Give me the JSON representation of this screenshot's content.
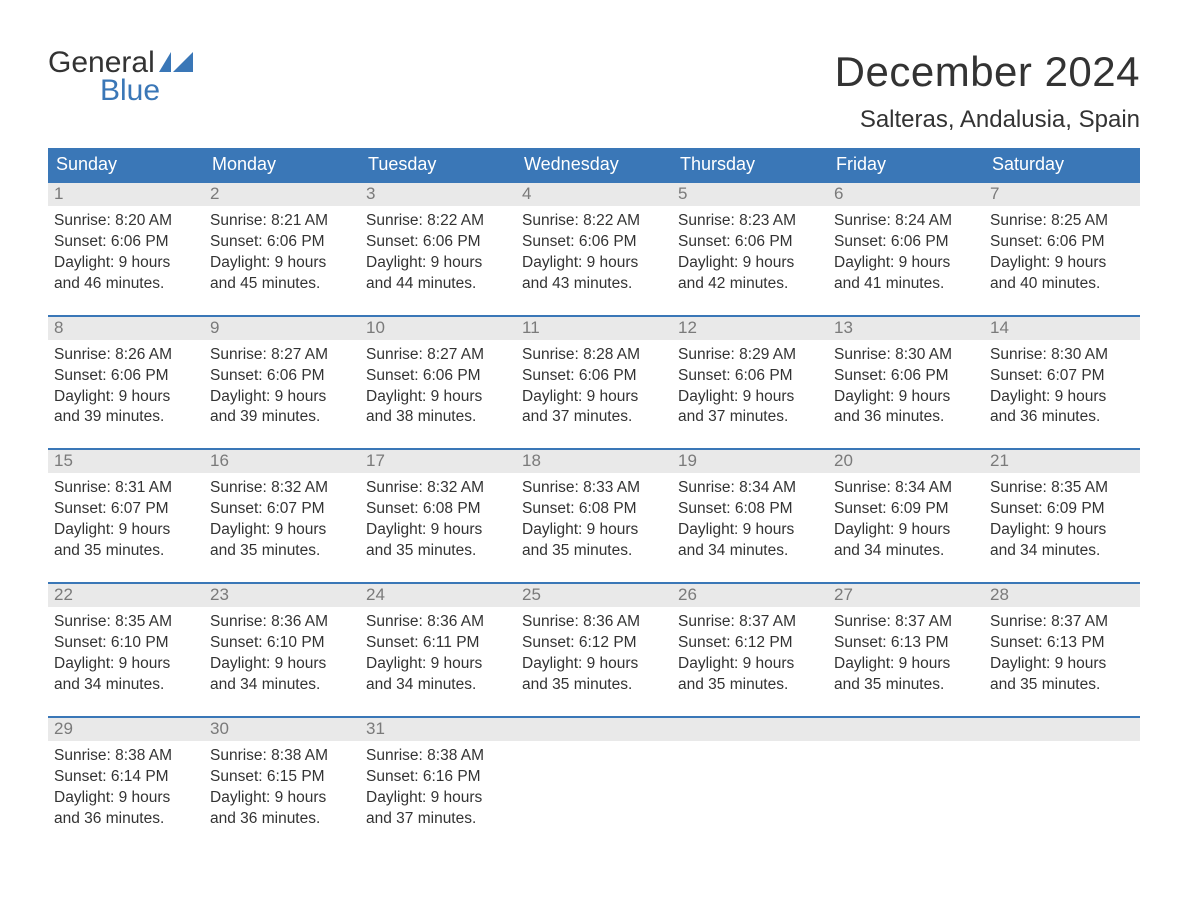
{
  "logo": {
    "line1": "General",
    "line2": "Blue",
    "flag_color": "#3a77b7"
  },
  "title": "December 2024",
  "location": "Salteras, Andalusia, Spain",
  "colors": {
    "header_bg": "#3a77b7",
    "header_text": "#ffffff",
    "daynum_bg": "#e9e9e9",
    "daynum_text": "#7a7a7a",
    "body_text": "#333333",
    "week_border": "#3a77b7",
    "page_bg": "#ffffff"
  },
  "day_names": [
    "Sunday",
    "Monday",
    "Tuesday",
    "Wednesday",
    "Thursday",
    "Friday",
    "Saturday"
  ],
  "weeks": [
    [
      {
        "n": "1",
        "sunrise": "Sunrise: 8:20 AM",
        "sunset": "Sunset: 6:06 PM",
        "day1": "Daylight: 9 hours",
        "day2": "and 46 minutes."
      },
      {
        "n": "2",
        "sunrise": "Sunrise: 8:21 AM",
        "sunset": "Sunset: 6:06 PM",
        "day1": "Daylight: 9 hours",
        "day2": "and 45 minutes."
      },
      {
        "n": "3",
        "sunrise": "Sunrise: 8:22 AM",
        "sunset": "Sunset: 6:06 PM",
        "day1": "Daylight: 9 hours",
        "day2": "and 44 minutes."
      },
      {
        "n": "4",
        "sunrise": "Sunrise: 8:22 AM",
        "sunset": "Sunset: 6:06 PM",
        "day1": "Daylight: 9 hours",
        "day2": "and 43 minutes."
      },
      {
        "n": "5",
        "sunrise": "Sunrise: 8:23 AM",
        "sunset": "Sunset: 6:06 PM",
        "day1": "Daylight: 9 hours",
        "day2": "and 42 minutes."
      },
      {
        "n": "6",
        "sunrise": "Sunrise: 8:24 AM",
        "sunset": "Sunset: 6:06 PM",
        "day1": "Daylight: 9 hours",
        "day2": "and 41 minutes."
      },
      {
        "n": "7",
        "sunrise": "Sunrise: 8:25 AM",
        "sunset": "Sunset: 6:06 PM",
        "day1": "Daylight: 9 hours",
        "day2": "and 40 minutes."
      }
    ],
    [
      {
        "n": "8",
        "sunrise": "Sunrise: 8:26 AM",
        "sunset": "Sunset: 6:06 PM",
        "day1": "Daylight: 9 hours",
        "day2": "and 39 minutes."
      },
      {
        "n": "9",
        "sunrise": "Sunrise: 8:27 AM",
        "sunset": "Sunset: 6:06 PM",
        "day1": "Daylight: 9 hours",
        "day2": "and 39 minutes."
      },
      {
        "n": "10",
        "sunrise": "Sunrise: 8:27 AM",
        "sunset": "Sunset: 6:06 PM",
        "day1": "Daylight: 9 hours",
        "day2": "and 38 minutes."
      },
      {
        "n": "11",
        "sunrise": "Sunrise: 8:28 AM",
        "sunset": "Sunset: 6:06 PM",
        "day1": "Daylight: 9 hours",
        "day2": "and 37 minutes."
      },
      {
        "n": "12",
        "sunrise": "Sunrise: 8:29 AM",
        "sunset": "Sunset: 6:06 PM",
        "day1": "Daylight: 9 hours",
        "day2": "and 37 minutes."
      },
      {
        "n": "13",
        "sunrise": "Sunrise: 8:30 AM",
        "sunset": "Sunset: 6:06 PM",
        "day1": "Daylight: 9 hours",
        "day2": "and 36 minutes."
      },
      {
        "n": "14",
        "sunrise": "Sunrise: 8:30 AM",
        "sunset": "Sunset: 6:07 PM",
        "day1": "Daylight: 9 hours",
        "day2": "and 36 minutes."
      }
    ],
    [
      {
        "n": "15",
        "sunrise": "Sunrise: 8:31 AM",
        "sunset": "Sunset: 6:07 PM",
        "day1": "Daylight: 9 hours",
        "day2": "and 35 minutes."
      },
      {
        "n": "16",
        "sunrise": "Sunrise: 8:32 AM",
        "sunset": "Sunset: 6:07 PM",
        "day1": "Daylight: 9 hours",
        "day2": "and 35 minutes."
      },
      {
        "n": "17",
        "sunrise": "Sunrise: 8:32 AM",
        "sunset": "Sunset: 6:08 PM",
        "day1": "Daylight: 9 hours",
        "day2": "and 35 minutes."
      },
      {
        "n": "18",
        "sunrise": "Sunrise: 8:33 AM",
        "sunset": "Sunset: 6:08 PM",
        "day1": "Daylight: 9 hours",
        "day2": "and 35 minutes."
      },
      {
        "n": "19",
        "sunrise": "Sunrise: 8:34 AM",
        "sunset": "Sunset: 6:08 PM",
        "day1": "Daylight: 9 hours",
        "day2": "and 34 minutes."
      },
      {
        "n": "20",
        "sunrise": "Sunrise: 8:34 AM",
        "sunset": "Sunset: 6:09 PM",
        "day1": "Daylight: 9 hours",
        "day2": "and 34 minutes."
      },
      {
        "n": "21",
        "sunrise": "Sunrise: 8:35 AM",
        "sunset": "Sunset: 6:09 PM",
        "day1": "Daylight: 9 hours",
        "day2": "and 34 minutes."
      }
    ],
    [
      {
        "n": "22",
        "sunrise": "Sunrise: 8:35 AM",
        "sunset": "Sunset: 6:10 PM",
        "day1": "Daylight: 9 hours",
        "day2": "and 34 minutes."
      },
      {
        "n": "23",
        "sunrise": "Sunrise: 8:36 AM",
        "sunset": "Sunset: 6:10 PM",
        "day1": "Daylight: 9 hours",
        "day2": "and 34 minutes."
      },
      {
        "n": "24",
        "sunrise": "Sunrise: 8:36 AM",
        "sunset": "Sunset: 6:11 PM",
        "day1": "Daylight: 9 hours",
        "day2": "and 34 minutes."
      },
      {
        "n": "25",
        "sunrise": "Sunrise: 8:36 AM",
        "sunset": "Sunset: 6:12 PM",
        "day1": "Daylight: 9 hours",
        "day2": "and 35 minutes."
      },
      {
        "n": "26",
        "sunrise": "Sunrise: 8:37 AM",
        "sunset": "Sunset: 6:12 PM",
        "day1": "Daylight: 9 hours",
        "day2": "and 35 minutes."
      },
      {
        "n": "27",
        "sunrise": "Sunrise: 8:37 AM",
        "sunset": "Sunset: 6:13 PM",
        "day1": "Daylight: 9 hours",
        "day2": "and 35 minutes."
      },
      {
        "n": "28",
        "sunrise": "Sunrise: 8:37 AM",
        "sunset": "Sunset: 6:13 PM",
        "day1": "Daylight: 9 hours",
        "day2": "and 35 minutes."
      }
    ],
    [
      {
        "n": "29",
        "sunrise": "Sunrise: 8:38 AM",
        "sunset": "Sunset: 6:14 PM",
        "day1": "Daylight: 9 hours",
        "day2": "and 36 minutes."
      },
      {
        "n": "30",
        "sunrise": "Sunrise: 8:38 AM",
        "sunset": "Sunset: 6:15 PM",
        "day1": "Daylight: 9 hours",
        "day2": "and 36 minutes."
      },
      {
        "n": "31",
        "sunrise": "Sunrise: 8:38 AM",
        "sunset": "Sunset: 6:16 PM",
        "day1": "Daylight: 9 hours",
        "day2": "and 37 minutes."
      },
      {
        "empty": true
      },
      {
        "empty": true
      },
      {
        "empty": true
      },
      {
        "empty": true
      }
    ]
  ]
}
